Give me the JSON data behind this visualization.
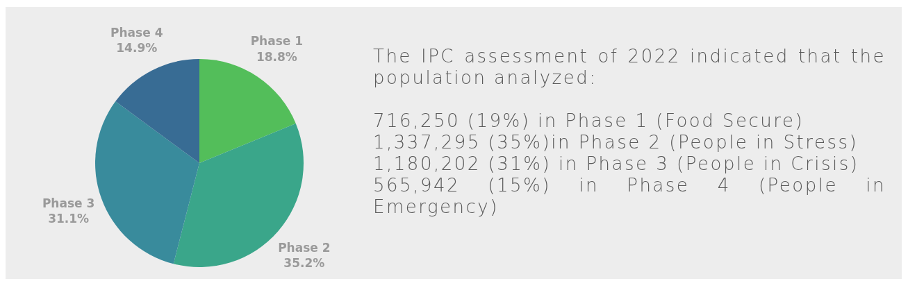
{
  "chart_data": {
    "type": "pie",
    "categories": [
      "Phase 1",
      "Phase 2",
      "Phase 3",
      "Phase 4"
    ],
    "values": [
      18.8,
      35.2,
      31.1,
      14.9
    ],
    "colors": [
      "#53be5a",
      "#3aa68a",
      "#398b9c",
      "#386c94"
    ],
    "value_labels": [
      "18.8%",
      "35.2%",
      "31.1%",
      "14.9%"
    ],
    "annotations": [
      "The IPC assessment of 2022 indicated that the population analyzed:",
      "716,250 (19%) in Phase 1 (Food Secure)",
      "1,337,295 (35%)in Phase 2 (People in Stress)",
      "1,180,202 (31%) in Phase 3 (People in Crisis)",
      "565,942 (15%) in Phase 4 (People in Emergency)"
    ]
  }
}
